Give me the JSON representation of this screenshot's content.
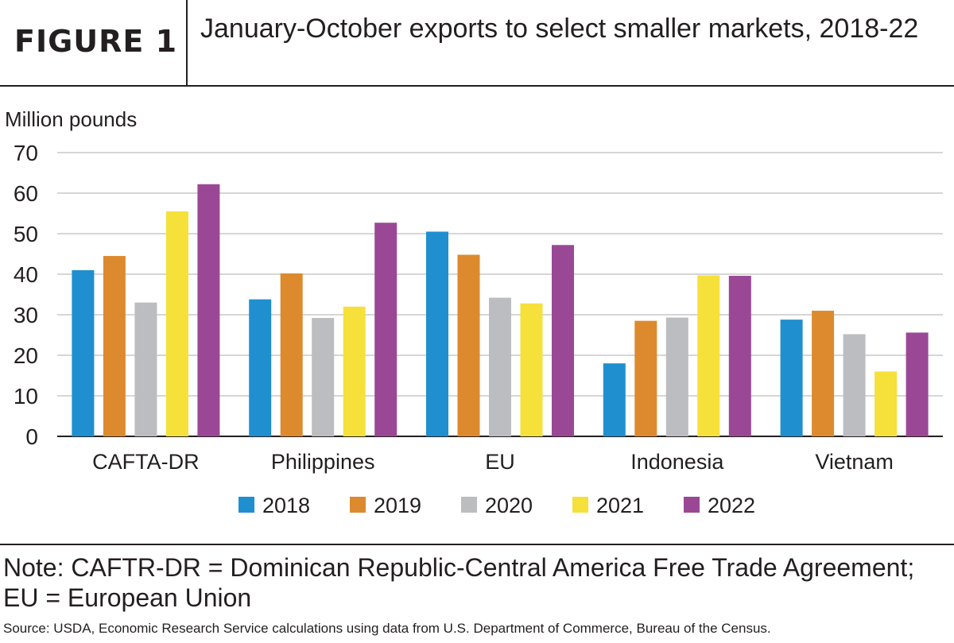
{
  "figure_label": "FIGURE 1",
  "chart_data": {
    "type": "bar",
    "title": "January-October exports to select smaller markets, 2018-22",
    "ylabel": "Million pounds",
    "xlabel": "",
    "ylim": [
      0,
      70
    ],
    "yticks": [
      0,
      10,
      20,
      30,
      40,
      50,
      60,
      70
    ],
    "grid": true,
    "legend_position": "bottom",
    "categories": [
      "CAFTA-DR",
      "Philippines",
      "EU",
      "Indonesia",
      "Vietnam"
    ],
    "series": [
      {
        "name": "2018",
        "color": "#1f8fcf",
        "values": [
          41,
          33.8,
          50.5,
          18,
          28.8
        ]
      },
      {
        "name": "2019",
        "color": "#dd8a2e",
        "values": [
          44.5,
          40.2,
          44.8,
          28.5,
          31
        ]
      },
      {
        "name": "2020",
        "color": "#bcbdc0",
        "values": [
          33,
          29.2,
          34.2,
          29.3,
          25.2
        ]
      },
      {
        "name": "2021",
        "color": "#f6e03a",
        "values": [
          55.5,
          32,
          32.8,
          39.7,
          16
        ]
      },
      {
        "name": "2022",
        "color": "#9a4895",
        "values": [
          62.2,
          52.7,
          47.2,
          39.6,
          25.6
        ]
      }
    ]
  },
  "note": "Note: CAFTR-DR = Dominican Republic-Central America Free Trade Agreement; EU = European Union",
  "source": "Source: USDA, Economic Research Service calculations using data from U.S. Department of Commerce, Bureau of the Census."
}
